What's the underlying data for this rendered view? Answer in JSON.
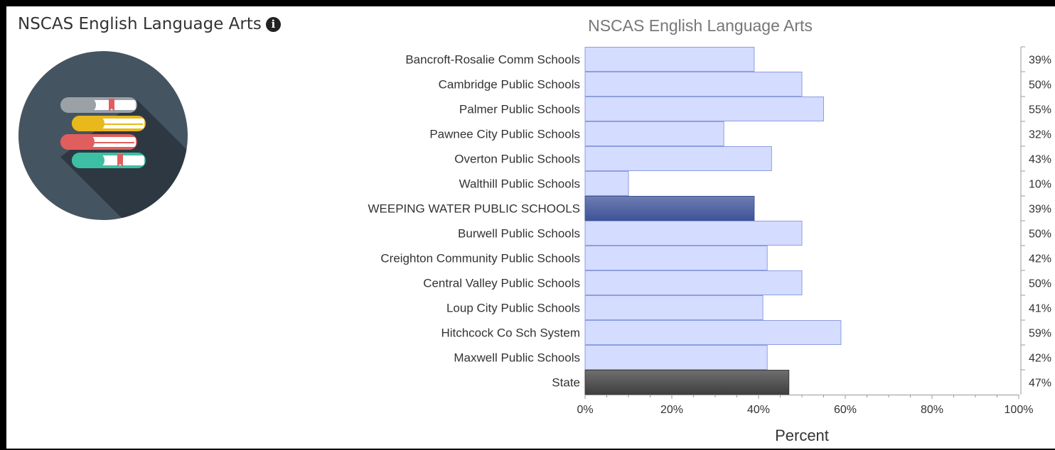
{
  "panel": {
    "title": "NSCAS English Language Arts",
    "info_icon": "info-circle-icon",
    "logo_icon": "books-stack-icon"
  },
  "chart_data": {
    "type": "bar",
    "orientation": "horizontal",
    "title": "NSCAS English Language Arts",
    "xlabel": "Percent",
    "ylabel": "",
    "xlim": [
      0,
      100
    ],
    "x_ticks": [
      "0%",
      "20%",
      "40%",
      "60%",
      "80%",
      "100%"
    ],
    "grid": false,
    "categories": [
      "Bancroft-Rosalie Comm Schools",
      "Cambridge Public Schools",
      "Palmer Public Schools",
      "Pawnee City Public Schools",
      "Overton Public Schools",
      "Walthill Public Schools",
      "WEEPING WATER PUBLIC SCHOOLS",
      "Burwell Public Schools",
      "Creighton Community Public Schools",
      "Central Valley Public Schools",
      "Loup City Public Schools",
      "Hitchcock Co Sch System",
      "Maxwell Public Schools",
      "State"
    ],
    "values": [
      39,
      50,
      55,
      32,
      43,
      10,
      39,
      50,
      42,
      50,
      41,
      59,
      42,
      47
    ],
    "value_labels": [
      "39%",
      "50%",
      "55%",
      "32%",
      "43%",
      "10%",
      "39%",
      "50%",
      "42%",
      "50%",
      "41%",
      "59%",
      "42%",
      "47%"
    ],
    "highlight": {
      "WEEPING WATER PUBLIC SCHOOLS": "#3e5398",
      "State": "#3f3f3f"
    },
    "colors": {
      "default_fill": "#d4dcff",
      "default_stroke": "#8e9ee0",
      "text": "#333333",
      "axis": "#999999"
    }
  }
}
